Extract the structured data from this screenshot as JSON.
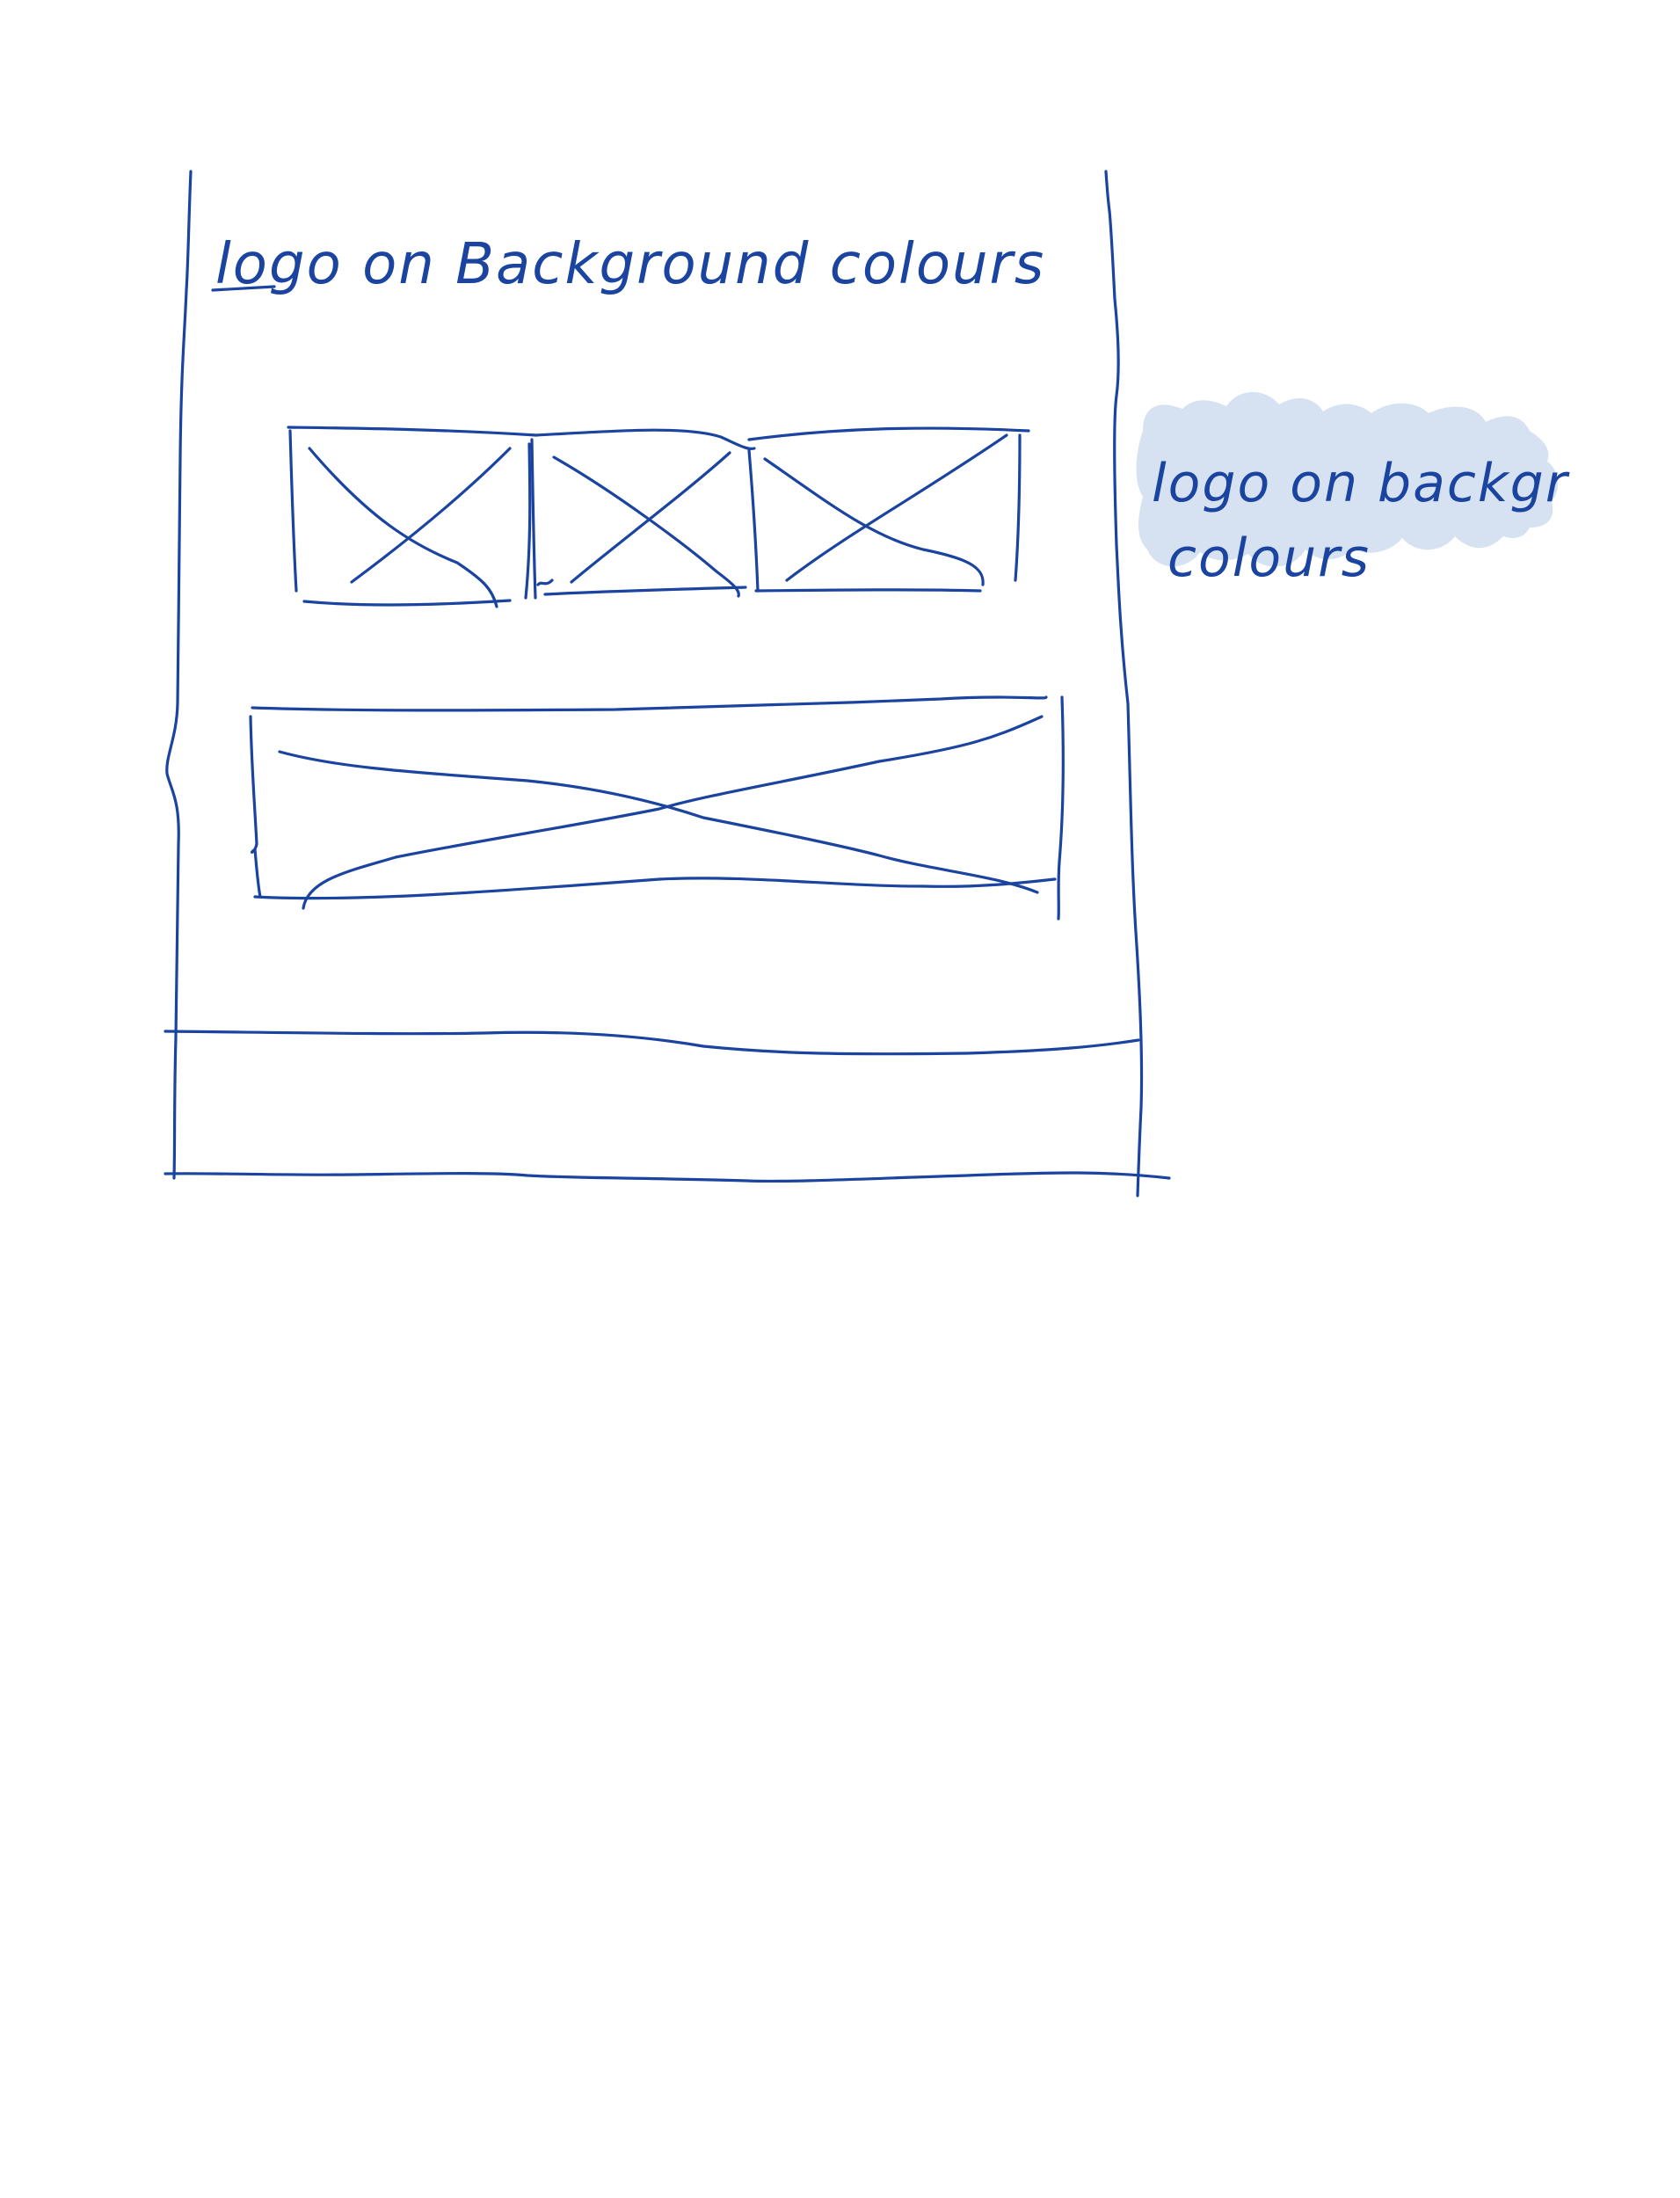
{
  "sketch": {
    "title": "logo on Background colours",
    "ink_color": "#1a44a0",
    "note_color": "#d6e2f2"
  },
  "sticky_note": {
    "line1": "logo on backgr",
    "line2": "colours"
  },
  "placeholders": {
    "logo_boxes": [
      "logo-image-1",
      "logo-image-2",
      "logo-image-3"
    ],
    "banner": "banner-image"
  }
}
